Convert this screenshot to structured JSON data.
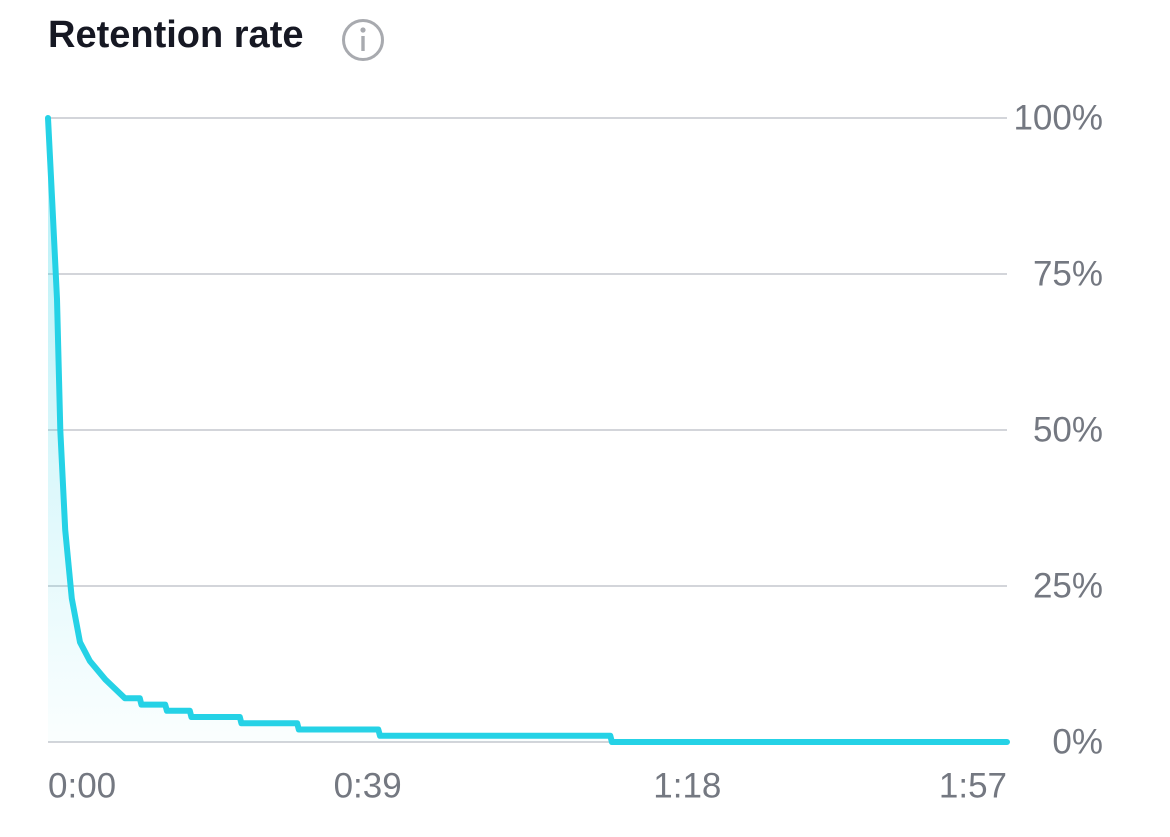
{
  "chart_data": {
    "type": "line",
    "title": "Retention rate",
    "x": [
      0,
      0.5,
      1.1,
      1.5,
      2.1,
      2.9,
      3.9,
      5.1,
      7,
      9.4,
      11.2,
      11.4,
      14.3,
      14.5,
      17.3,
      17.5,
      23.4,
      23.6,
      30.4,
      30.6,
      40.3,
      40.5,
      68.6,
      68.8,
      117
    ],
    "values": [
      100,
      87,
      71,
      50,
      34,
      23,
      16,
      13,
      10,
      7,
      7,
      6,
      6,
      5,
      5,
      4,
      4,
      3,
      3,
      2,
      2,
      1,
      1,
      0,
      0
    ],
    "color": "#25d2e6",
    "xlim": [
      0,
      117
    ],
    "xticks": [
      {
        "value": 0,
        "label": "0:00"
      },
      {
        "value": 39,
        "label": "0:39"
      },
      {
        "value": 78,
        "label": "1:18"
      },
      {
        "value": 117,
        "label": "1:57"
      }
    ],
    "ylim": [
      0,
      100
    ],
    "yticks": [
      {
        "value": 0,
        "label": "0%"
      },
      {
        "value": 25,
        "label": "25%"
      },
      {
        "value": 50,
        "label": "50%"
      },
      {
        "value": 75,
        "label": "75%"
      },
      {
        "value": 100,
        "label": "100%"
      }
    ],
    "grid": true
  }
}
